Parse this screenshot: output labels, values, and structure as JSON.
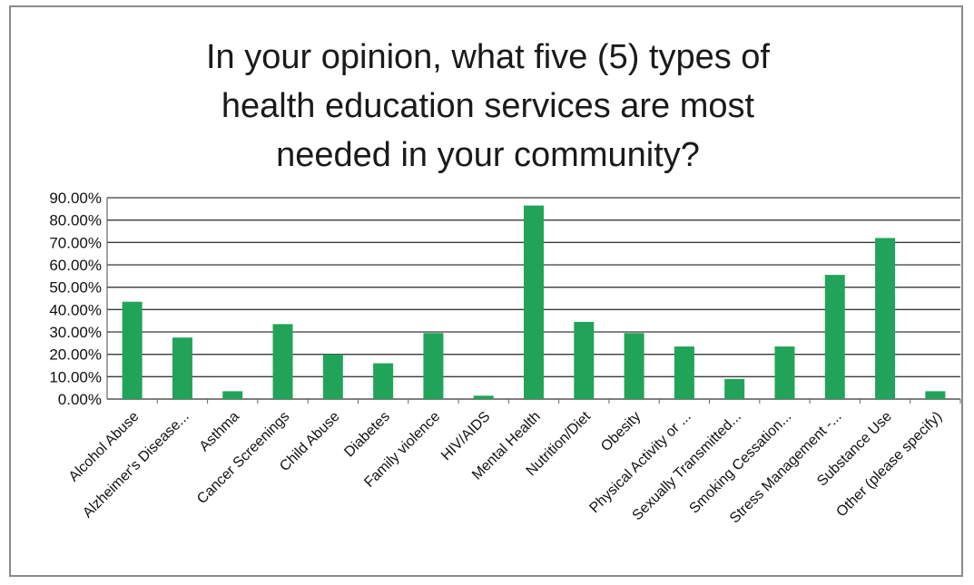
{
  "chart_data": {
    "type": "bar",
    "title_lines": [
      "In your opinion, what five (5) types of",
      "health education services are most",
      "needed in your community?"
    ],
    "categories": [
      "Alcohol Abuse",
      "Alzheimer's Disease...",
      "Asthma",
      "Cancer Screenings",
      "Child Abuse",
      "Diabetes",
      "Family violence",
      "HIV/AIDS",
      "Mental Health",
      "Nutrition/Diet",
      "Obesity",
      "Physical Activity or ...",
      "Sexually Transmitted...",
      "Smoking Cessation...",
      "Stress Management -...",
      "Substance Use",
      "Other (please specify)"
    ],
    "values": [
      43.5,
      27.5,
      3.5,
      33.5,
      20.0,
      16.0,
      29.5,
      1.5,
      86.5,
      34.5,
      29.5,
      23.5,
      9.0,
      23.5,
      55.5,
      72.0,
      3.5
    ],
    "y_ticks": [
      "0.00%",
      "10.00%",
      "20.00%",
      "30.00%",
      "40.00%",
      "50.00%",
      "60.00%",
      "70.00%",
      "80.00%",
      "90.00%"
    ],
    "ylim": [
      0,
      90
    ],
    "grid": true,
    "bar_color": "#21a45a",
    "legend": "none"
  }
}
